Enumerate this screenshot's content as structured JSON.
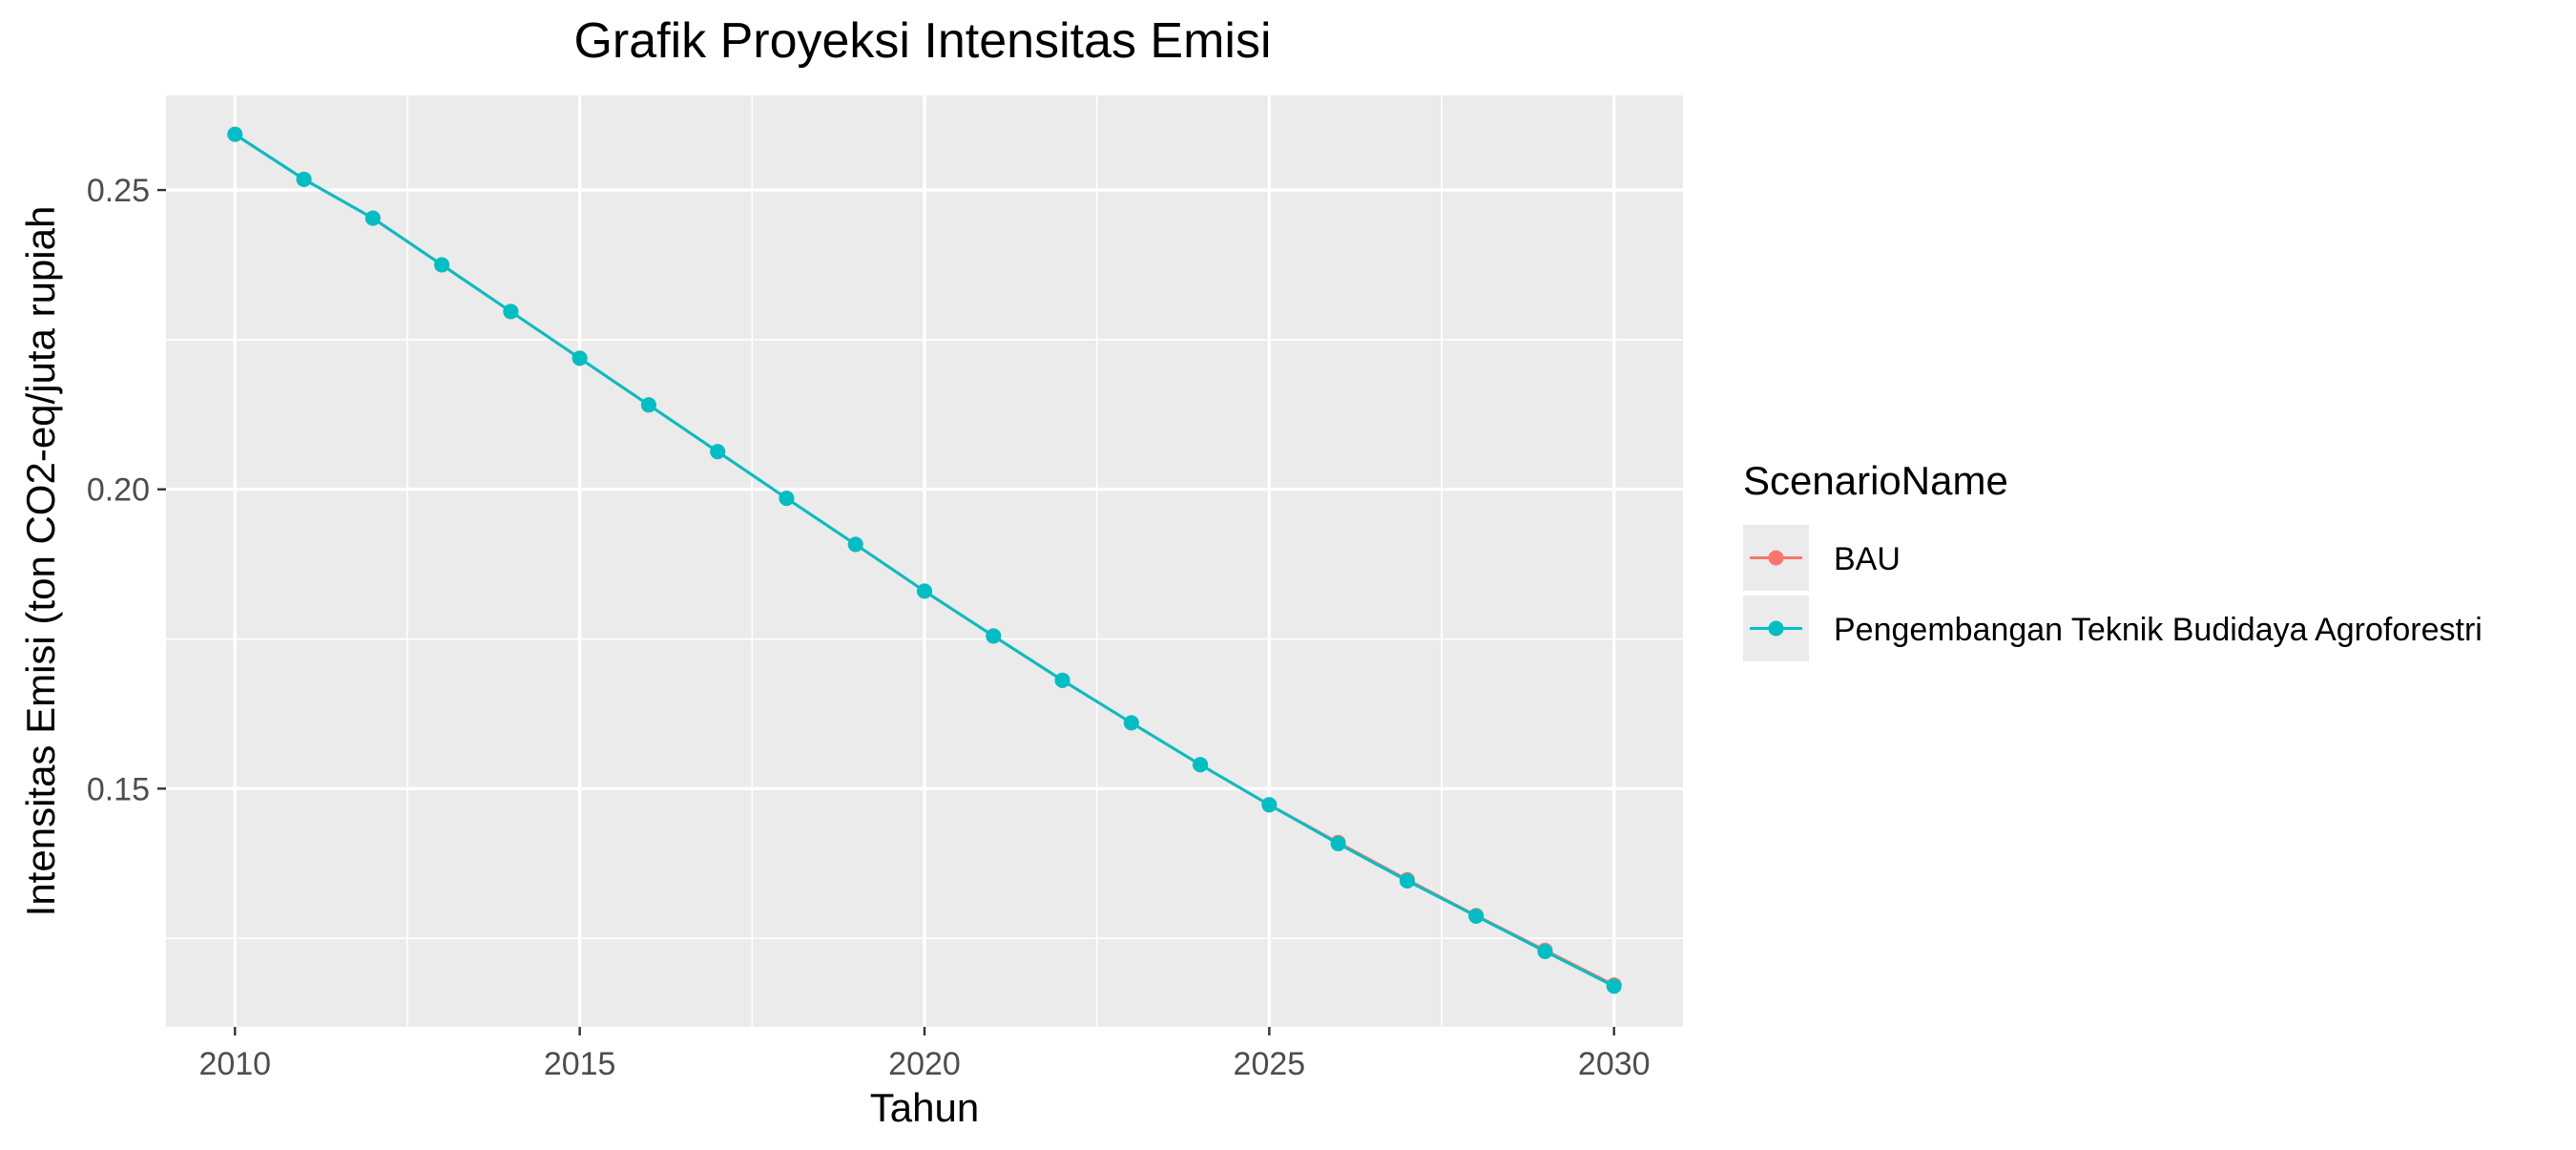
{
  "chart_data": {
    "type": "line",
    "title": "Grafik Proyeksi Intensitas Emisi",
    "xlabel": "Tahun",
    "ylabel": "Intensitas Emisi (ton CO2-eq/juta rupiah",
    "x": [
      2010,
      2011,
      2012,
      2013,
      2014,
      2015,
      2016,
      2017,
      2018,
      2019,
      2020,
      2021,
      2022,
      2023,
      2024,
      2025,
      2026,
      2027,
      2028,
      2029,
      2030
    ],
    "xlim": [
      2009,
      2031
    ],
    "ylim": [
      0.1102,
      0.2658
    ],
    "x_ticks": [
      2010,
      2015,
      2020,
      2025,
      2030
    ],
    "y_ticks": [
      0.15,
      0.2,
      0.25
    ],
    "y_tick_labels": [
      "0.15",
      "0.20",
      "0.25"
    ],
    "grid": true,
    "panel_background": "#EBEBEB",
    "legend": {
      "title": "ScenarioName",
      "placement": "right"
    },
    "series": [
      {
        "name": "BAU",
        "color": "#F8766D",
        "values": [
          0.2593,
          0.2518,
          0.2453,
          0.2375,
          0.2297,
          0.2219,
          0.2141,
          0.2063,
          0.1985,
          0.1908,
          0.183,
          0.1755,
          0.1681,
          0.161,
          0.154,
          0.1473,
          0.141,
          0.1348,
          0.1288,
          0.123,
          0.1172
        ]
      },
      {
        "name": "Pengembangan Teknik Budidaya Agroforestri",
        "color": "#00BFC4",
        "values": [
          0.2593,
          0.2518,
          0.2453,
          0.2375,
          0.2297,
          0.2219,
          0.2141,
          0.2063,
          0.1985,
          0.1908,
          0.183,
          0.1755,
          0.1681,
          0.161,
          0.154,
          0.1473,
          0.1408,
          0.1346,
          0.1287,
          0.1228,
          0.117
        ]
      }
    ]
  }
}
